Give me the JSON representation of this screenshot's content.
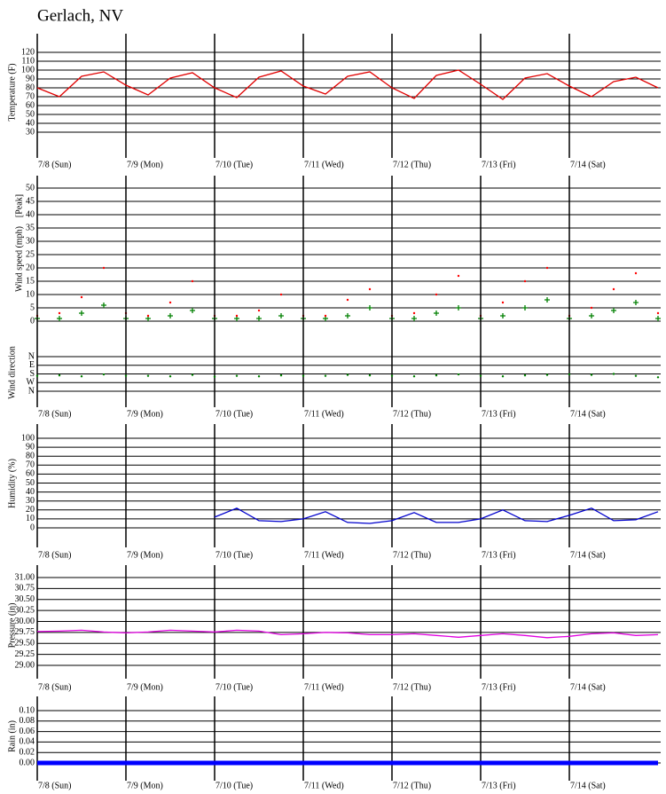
{
  "title": "Gerlach, NV",
  "chart_data": [
    {
      "type": "line",
      "ylabel": "Temperature (F)",
      "color": "#e00000",
      "x": [
        0,
        6,
        12,
        18,
        24,
        30,
        36,
        42,
        48,
        54,
        60,
        66,
        72,
        78,
        84,
        90,
        96,
        102,
        108,
        114,
        120,
        126,
        132,
        138,
        144,
        150,
        156,
        162,
        168
      ],
      "values": [
        80,
        70,
        93,
        98,
        83,
        72,
        91,
        97,
        80,
        69,
        92,
        99,
        82,
        73,
        93,
        98,
        80,
        68,
        94,
        100,
        84,
        67,
        91,
        96,
        82,
        70,
        87,
        92,
        80
      ],
      "xlim": [
        0,
        168
      ],
      "xticks": [
        {
          "value": 0,
          "label": "7/8 (Sun)"
        },
        {
          "value": 24,
          "label": "7/9 (Mon)"
        },
        {
          "value": 48,
          "label": "7/10 (Tue)"
        },
        {
          "value": 72,
          "label": "7/11 (Wed)"
        },
        {
          "value": 96,
          "label": "7/12 (Thu)"
        },
        {
          "value": 120,
          "label": "7/13 (Fri)"
        },
        {
          "value": 144,
          "label": "7/14 (Sat)"
        }
      ],
      "ylim": [
        30,
        120
      ],
      "yticks": [
        30,
        40,
        50,
        60,
        70,
        80,
        90,
        100,
        110,
        120
      ]
    },
    {
      "type": "scatter",
      "ylabel": "Wind speed (mph)",
      "x": [
        0,
        6,
        12,
        18,
        24,
        30,
        36,
        42,
        48,
        54,
        60,
        66,
        72,
        78,
        84,
        90,
        96,
        102,
        108,
        114,
        120,
        126,
        132,
        138,
        144,
        150,
        156,
        162,
        168
      ],
      "series": [
        {
          "color": "#008000",
          "marker": "plus",
          "values": [
            1,
            1,
            3,
            6,
            1,
            1,
            2,
            4,
            1,
            1,
            1,
            2,
            1,
            1,
            2,
            5,
            1,
            1,
            3,
            5,
            1,
            2,
            5,
            8,
            1,
            2,
            4,
            7,
            1
          ]
        },
        {
          "name": "[Peak]",
          "color": "#ff0000",
          "marker": "dot",
          "values": [
            2,
            3,
            9,
            20,
            3,
            2,
            7,
            15,
            2,
            2,
            4,
            10,
            2,
            2,
            8,
            12,
            2,
            3,
            10,
            17,
            2,
            7,
            15,
            20,
            2,
            5,
            12,
            18,
            3
          ]
        }
      ],
      "xlim": [
        0,
        168
      ],
      "ylim": [
        0,
        50
      ],
      "yticks": [
        0,
        5,
        10,
        15,
        20,
        25,
        30,
        35,
        40,
        45,
        50
      ]
    },
    {
      "type": "scatter",
      "ylabel": "Wind direction",
      "x": [
        0,
        6,
        12,
        18,
        24,
        30,
        36,
        42,
        48,
        54,
        60,
        66,
        72,
        78,
        84,
        90,
        96,
        102,
        108,
        114,
        120,
        126,
        132,
        138,
        144,
        150,
        156,
        162,
        168
      ],
      "series": [
        {
          "color": "#008000",
          "marker": "dot",
          "values": [
            200,
            195,
            205,
            185,
            200,
            200,
            205,
            190,
            210,
            200,
            205,
            195,
            200,
            200,
            190,
            195,
            200,
            205,
            195,
            185,
            200,
            205,
            195,
            190,
            185,
            190,
            180,
            200,
            215
          ]
        }
      ],
      "xlim": [
        0,
        168
      ],
      "xticks": [
        {
          "value": 0,
          "label": "7/8 (Sun)"
        },
        {
          "value": 24,
          "label": "7/9 (Mon)"
        },
        {
          "value": 48,
          "label": "7/10 (Tue)"
        },
        {
          "value": 72,
          "label": "7/11 (Wed)"
        },
        {
          "value": 96,
          "label": "7/12 (Thu)"
        },
        {
          "value": 120,
          "label": "7/13 (Fri)"
        },
        {
          "value": 144,
          "label": "7/14 (Sat)"
        }
      ],
      "ylim": [
        0,
        360
      ],
      "yticks": [
        {
          "value": 0,
          "label": "N"
        },
        {
          "value": 90,
          "label": "E"
        },
        {
          "value": 180,
          "label": "S"
        },
        {
          "value": 270,
          "label": "W"
        },
        {
          "value": 360,
          "label": "N"
        }
      ]
    },
    {
      "type": "line",
      "ylabel": "Humidity (%)",
      "color": "#0000cc",
      "x": [
        0,
        6,
        12,
        18,
        24,
        30,
        36,
        42,
        48,
        54,
        60,
        66,
        72,
        78,
        84,
        90,
        96,
        102,
        108,
        114,
        120,
        126,
        132,
        138,
        144,
        150,
        156,
        162,
        168
      ],
      "values": [
        null,
        null,
        null,
        null,
        null,
        null,
        null,
        null,
        12,
        22,
        8,
        7,
        10,
        18,
        6,
        5,
        8,
        17,
        6,
        6,
        10,
        20,
        8,
        7,
        14,
        22,
        8,
        9,
        18
      ],
      "xlim": [
        0,
        168
      ],
      "xticks": [
        {
          "value": 0,
          "label": "7/8 (Sun)"
        },
        {
          "value": 24,
          "label": "7/9 (Mon)"
        },
        {
          "value": 48,
          "label": "7/10 (Tue)"
        },
        {
          "value": 72,
          "label": "7/11 (Wed)"
        },
        {
          "value": 96,
          "label": "7/12 (Thu)"
        },
        {
          "value": 120,
          "label": "7/13 (Fri)"
        },
        {
          "value": 144,
          "label": "7/14 (Sat)"
        }
      ],
      "ylim": [
        0,
        100
      ],
      "yticks": [
        0,
        10,
        20,
        30,
        40,
        50,
        60,
        70,
        80,
        90,
        100
      ]
    },
    {
      "type": "line",
      "ylabel": "Pressure (in)",
      "color": "#e000e0",
      "x": [
        0,
        6,
        12,
        18,
        24,
        30,
        36,
        42,
        48,
        54,
        60,
        66,
        72,
        78,
        84,
        90,
        96,
        102,
        108,
        114,
        120,
        126,
        132,
        138,
        144,
        150,
        156,
        162,
        168
      ],
      "values": [
        29.77,
        29.78,
        29.8,
        29.76,
        29.74,
        29.76,
        29.8,
        29.78,
        29.76,
        29.8,
        29.78,
        29.7,
        29.72,
        29.75,
        29.74,
        29.7,
        29.7,
        29.72,
        29.68,
        29.64,
        29.68,
        29.72,
        29.68,
        29.63,
        29.66,
        29.72,
        29.74,
        29.68,
        29.7
      ],
      "xlim": [
        0,
        168
      ],
      "xticks": [
        {
          "value": 0,
          "label": "7/8 (Sun)"
        },
        {
          "value": 24,
          "label": "7/9 (Mon)"
        },
        {
          "value": 48,
          "label": "7/10 (Tue)"
        },
        {
          "value": 72,
          "label": "7/11 (Wed)"
        },
        {
          "value": 96,
          "label": "7/12 (Thu)"
        },
        {
          "value": 120,
          "label": "7/13 (Fri)"
        },
        {
          "value": 144,
          "label": "7/14 (Sat)"
        }
      ],
      "ylim": [
        29,
        31
      ],
      "yticks": [
        {
          "value": 29,
          "label": "29.00"
        },
        {
          "value": 29.25,
          "label": "29.25"
        },
        {
          "value": 29.5,
          "label": "29.50"
        },
        {
          "value": 29.75,
          "label": "29.75"
        },
        {
          "value": 30,
          "label": "30.00"
        },
        {
          "value": 30.25,
          "label": "30.25"
        },
        {
          "value": 30.5,
          "label": "30.50"
        },
        {
          "value": 30.75,
          "label": "30.75"
        },
        {
          "value": 31,
          "label": "31.00"
        }
      ]
    },
    {
      "type": "line",
      "ylabel": "Rain (in)",
      "color": "#0000ff",
      "line_width": 5,
      "x": [
        0,
        6,
        12,
        18,
        24,
        30,
        36,
        42,
        48,
        54,
        60,
        66,
        72,
        78,
        84,
        90,
        96,
        102,
        108,
        114,
        120,
        126,
        132,
        138,
        144,
        150,
        156,
        162,
        168
      ],
      "values": [
        0,
        0,
        0,
        0,
        0,
        0,
        0,
        0,
        0,
        0,
        0,
        0,
        0,
        0,
        0,
        0,
        0,
        0,
        0,
        0,
        0,
        0,
        0,
        0,
        0,
        0,
        0,
        0,
        0
      ],
      "xlim": [
        0,
        168
      ],
      "xticks": [
        {
          "value": 0,
          "label": "7/8 (Sun)"
        },
        {
          "value": 24,
          "label": "7/9 (Mon)"
        },
        {
          "value": 48,
          "label": "7/10 (Tue)"
        },
        {
          "value": 72,
          "label": "7/11 (Wed)"
        },
        {
          "value": 96,
          "label": "7/12 (Thu)"
        },
        {
          "value": 120,
          "label": "7/13 (Fri)"
        },
        {
          "value": 144,
          "label": "7/14 (Sat)"
        }
      ],
      "ylim": [
        0,
        0.1
      ],
      "yticks": [
        {
          "value": 0,
          "label": "0.00"
        },
        {
          "value": 0.02,
          "label": "0.02"
        },
        {
          "value": 0.04,
          "label": "0.04"
        },
        {
          "value": 0.06,
          "label": "0.06"
        },
        {
          "value": 0.08,
          "label": "0.08"
        },
        {
          "value": 0.1,
          "label": "0.10"
        }
      ]
    }
  ]
}
